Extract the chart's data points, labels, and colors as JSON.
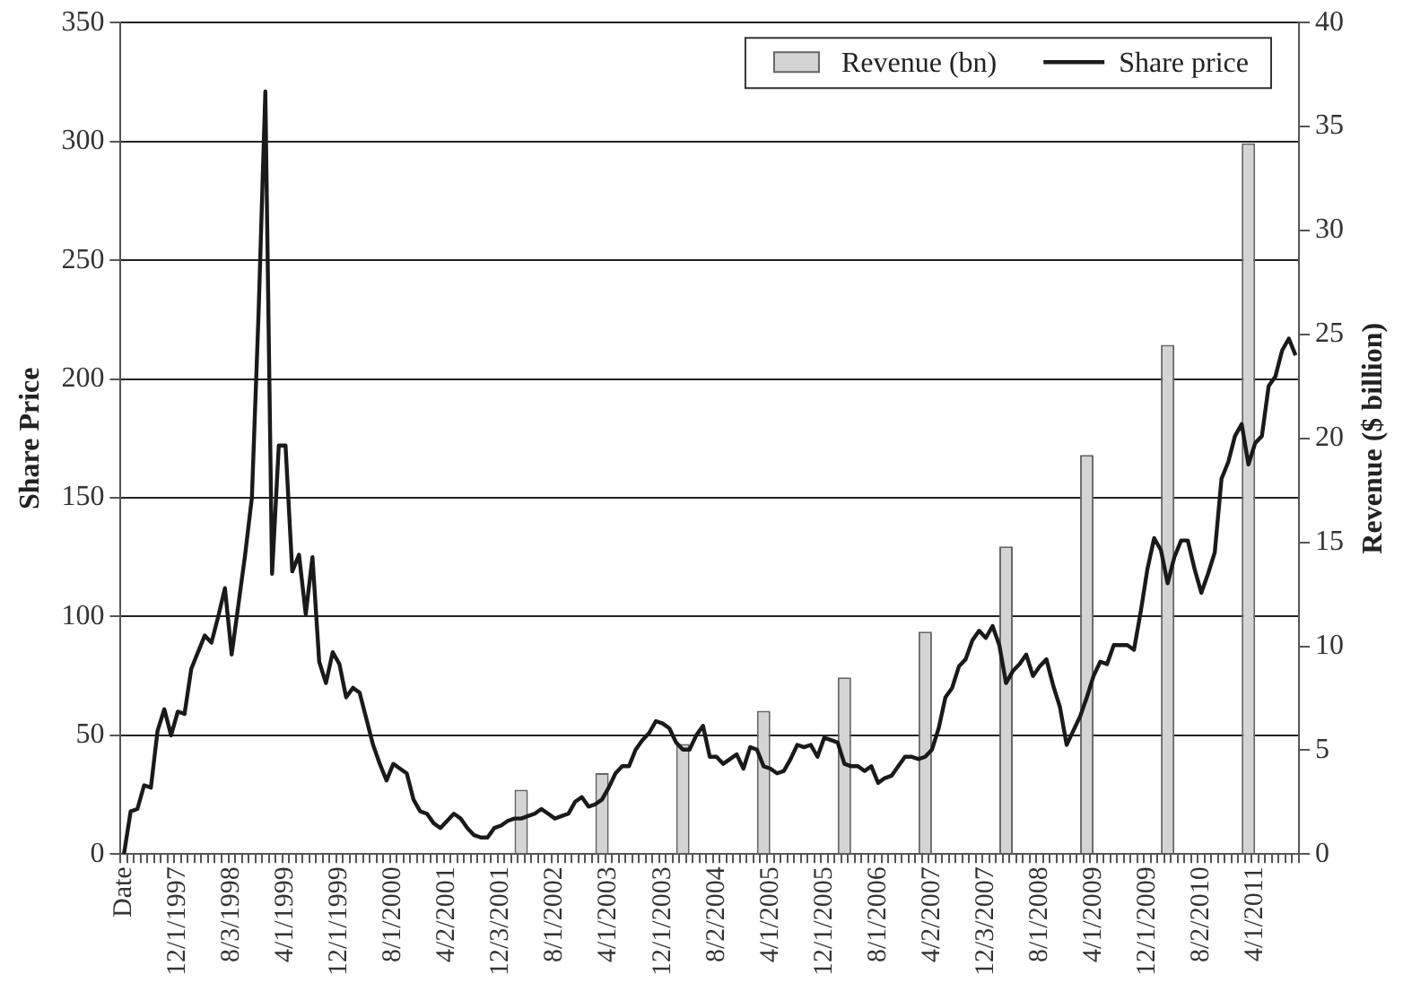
{
  "chart_data": {
    "type": "bar",
    "ylabel": "Share Price",
    "y2label": "Revenue ($ billion)",
    "categories": [
      "Date",
      null,
      null,
      null,
      null,
      null,
      null,
      null,
      "12/1/1997",
      null,
      null,
      null,
      null,
      null,
      null,
      null,
      "8/3/1998",
      null,
      null,
      null,
      null,
      null,
      null,
      null,
      "4/1/1999",
      null,
      null,
      null,
      null,
      null,
      null,
      null,
      "12/1/1999",
      null,
      null,
      null,
      null,
      null,
      null,
      null,
      "8/1/2000",
      null,
      null,
      null,
      null,
      null,
      null,
      null,
      "4/2/2001",
      null,
      null,
      null,
      null,
      null,
      null,
      null,
      "12/3/2001",
      null,
      null,
      null,
      null,
      null,
      null,
      null,
      "8/1/2002",
      null,
      null,
      null,
      null,
      null,
      null,
      null,
      "4/1/2003",
      null,
      null,
      null,
      null,
      null,
      null,
      null,
      "12/1/2003",
      null,
      null,
      null,
      null,
      null,
      null,
      null,
      "8/2/2004",
      null,
      null,
      null,
      null,
      null,
      null,
      null,
      "4/1/2005",
      null,
      null,
      null,
      null,
      null,
      null,
      null,
      "12/1/2005",
      null,
      null,
      null,
      null,
      null,
      null,
      null,
      "8/1/2006",
      null,
      null,
      null,
      null,
      null,
      null,
      null,
      "4/2/2007",
      null,
      null,
      null,
      null,
      null,
      null,
      null,
      "12/3/2007",
      null,
      null,
      null,
      null,
      null,
      null,
      null,
      "8/1/2008",
      null,
      null,
      null,
      null,
      null,
      null,
      null,
      "4/1/2009",
      null,
      null,
      null,
      null,
      null,
      null,
      null,
      "12/1/2009",
      null,
      null,
      null,
      null,
      null,
      null,
      null,
      "8/2/2010",
      null,
      null,
      null,
      null,
      null,
      null,
      null,
      "4/1/2011",
      null,
      null,
      null,
      null,
      null,
      null
    ],
    "series": [
      {
        "name": "Revenue (bn)",
        "axis": "y2",
        "color": "#d4d4d4",
        "values": [
          null,
          null,
          null,
          null,
          null,
          null,
          null,
          null,
          null,
          null,
          null,
          null,
          null,
          null,
          null,
          null,
          null,
          null,
          null,
          null,
          null,
          null,
          null,
          null,
          null,
          null,
          null,
          null,
          null,
          null,
          null,
          null,
          null,
          null,
          null,
          null,
          null,
          null,
          null,
          null,
          null,
          null,
          null,
          null,
          null,
          null,
          null,
          null,
          null,
          null,
          null,
          null,
          null,
          null,
          null,
          null,
          null,
          null,
          null,
          3.1,
          null,
          null,
          null,
          null,
          null,
          null,
          null,
          null,
          null,
          null,
          null,
          3.9,
          null,
          null,
          null,
          null,
          null,
          null,
          null,
          null,
          null,
          null,
          null,
          5.3,
          null,
          null,
          null,
          null,
          null,
          null,
          null,
          null,
          null,
          null,
          null,
          6.9,
          null,
          null,
          null,
          null,
          null,
          null,
          null,
          null,
          null,
          null,
          null,
          8.5,
          null,
          null,
          null,
          null,
          null,
          null,
          null,
          null,
          null,
          null,
          null,
          10.7,
          null,
          null,
          null,
          null,
          null,
          null,
          null,
          null,
          null,
          null,
          null,
          14.8,
          null,
          null,
          null,
          null,
          null,
          null,
          null,
          null,
          null,
          null,
          null,
          19.2,
          null,
          null,
          null,
          null,
          null,
          null,
          null,
          null,
          null,
          null,
          null,
          24.5,
          null,
          null,
          null,
          null,
          null,
          null,
          null,
          null,
          null,
          null,
          null,
          34.2,
          null,
          null,
          null,
          null,
          null,
          null,
          null
        ]
      },
      {
        "name": "Share price",
        "type": "line",
        "color": "#1a1a1a",
        "values": [
          0,
          18,
          19,
          29,
          28,
          52,
          61,
          50,
          60,
          59,
          78,
          85,
          92,
          89,
          100,
          112,
          84,
          105,
          126,
          150,
          228,
          321,
          118,
          172,
          172,
          119,
          126,
          101,
          125,
          81,
          72,
          85,
          80,
          66,
          70,
          68,
          57,
          46,
          38,
          31,
          38,
          36,
          34,
          23,
          18,
          17,
          13,
          11,
          14,
          17,
          15,
          11,
          8,
          7,
          7,
          11,
          12,
          14,
          15,
          15,
          16,
          17,
          19,
          17,
          15,
          16,
          17,
          22,
          24,
          20,
          21,
          23,
          28,
          34,
          37,
          37,
          44,
          48,
          51,
          56,
          55,
          53,
          47,
          44,
          44,
          50,
          54,
          41,
          41,
          38,
          40,
          42,
          36,
          45,
          44,
          37,
          36,
          34,
          35,
          40,
          46,
          45,
          46,
          41,
          49,
          48,
          47,
          38,
          37,
          37,
          35,
          37,
          30,
          32,
          33,
          37,
          41,
          41,
          40,
          41,
          44,
          53,
          66,
          70,
          79,
          82,
          90,
          94,
          91,
          96,
          88,
          72,
          77,
          80,
          84,
          75,
          79,
          82,
          71,
          62,
          46,
          52,
          58,
          66,
          75,
          81,
          80,
          88,
          88,
          88,
          86,
          102,
          120,
          133,
          128,
          114,
          125,
          132,
          132,
          120,
          110,
          118,
          127,
          158,
          165,
          176,
          181,
          164,
          173,
          176,
          197,
          201,
          212,
          217,
          210
        ]
      }
    ],
    "ylim": [
      0,
      350
    ],
    "yticks": [
      0,
      50,
      100,
      150,
      200,
      250,
      300,
      350
    ],
    "y2lim": [
      0,
      40
    ],
    "y2ticks": [
      0,
      5,
      10,
      15,
      20,
      25,
      30,
      35,
      40
    ],
    "grid": "y",
    "legend": "top right",
    "marker": "none",
    "line_style": "solid"
  }
}
